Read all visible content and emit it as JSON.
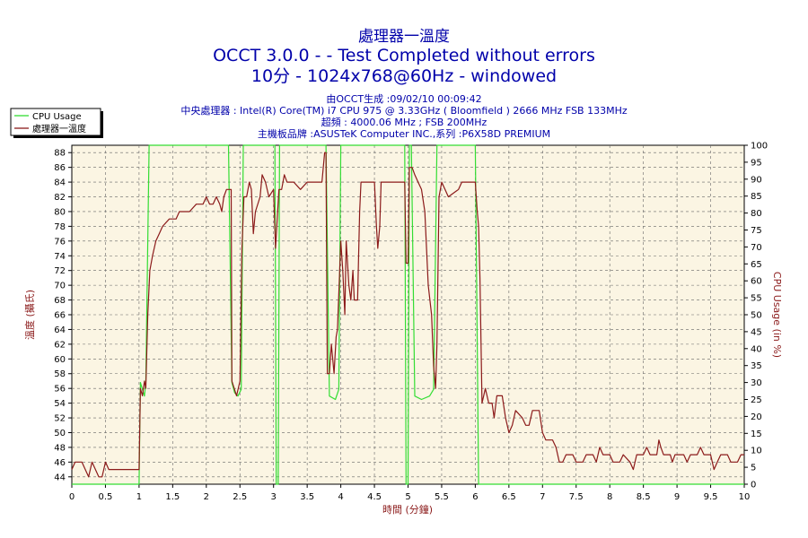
{
  "header": {
    "title": "處理器一溫度",
    "line1": "OCCT 3.0.0 -  - Test Completed without errors",
    "line2": "10分 - 1024x768@60Hz - windowed",
    "info": [
      "由OCCT生成 :09/02/10 00:09:42",
      "中央處理器 : Intel(R) Core(TM) i7 CPU 975 @ 3.33GHz ( Bloomfield ) 2666 MHz FSB 133MHz",
      "超頻 : 4000.06 MHz ; FSB 200MHz",
      "主機板品牌 :ASUSTeK Computer INC.,系列 :P6X58D PREMIUM"
    ]
  },
  "colors": {
    "plot_bg": "#fbf5e3",
    "cpu_usage": "#33dd33",
    "temperature": "#8b1a1a",
    "text_blue": "#0000aa",
    "axis_label": "#8b1a1a",
    "grid": "#666666"
  },
  "chart_data": {
    "type": "line",
    "xlabel": "時間 (分鐘)",
    "ylabel_left": "溫度 (攝氏)",
    "ylabel_right": "CPU Usage (in %)",
    "xlim": [
      0,
      10
    ],
    "ylim_left": [
      43,
      89
    ],
    "ylim_right": [
      0,
      100
    ],
    "x_ticks": [
      "0",
      "0.5",
      "1",
      "1.5",
      "2",
      "2.5",
      "3",
      "3.5",
      "4",
      "4.5",
      "5",
      "5.5",
      "6",
      "6.5",
      "7",
      "7.5",
      "8",
      "8.5",
      "9",
      "9.5",
      "10"
    ],
    "y_ticks_left": [
      "44",
      "46",
      "48",
      "50",
      "52",
      "54",
      "56",
      "58",
      "60",
      "62",
      "64",
      "66",
      "68",
      "70",
      "72",
      "74",
      "76",
      "78",
      "80",
      "82",
      "84",
      "86",
      "88"
    ],
    "y_ticks_right": [
      "0",
      "5",
      "10",
      "15",
      "20",
      "25",
      "30",
      "35",
      "40",
      "45",
      "50",
      "55",
      "60",
      "65",
      "70",
      "75",
      "80",
      "85",
      "90",
      "95",
      "100"
    ],
    "grid": true,
    "legend": {
      "position": "top-left",
      "entries": [
        "CPU Usage",
        "處理器一溫度"
      ]
    },
    "series": [
      {
        "name": "CPU Usage",
        "axis": "right",
        "points": [
          [
            0,
            0
          ],
          [
            1.0,
            0
          ],
          [
            1.02,
            30
          ],
          [
            1.05,
            28
          ],
          [
            1.08,
            26
          ],
          [
            1.1,
            30
          ],
          [
            1.15,
            100
          ],
          [
            1.17,
            100
          ],
          [
            2.33,
            100
          ],
          [
            2.38,
            30
          ],
          [
            2.42,
            27
          ],
          [
            2.47,
            26
          ],
          [
            2.52,
            28
          ],
          [
            2.55,
            100
          ],
          [
            3.02,
            100
          ],
          [
            3.04,
            0
          ],
          [
            3.07,
            0
          ],
          [
            3.09,
            100
          ],
          [
            3.78,
            100
          ],
          [
            3.83,
            26
          ],
          [
            3.92,
            25
          ],
          [
            3.97,
            28
          ],
          [
            4.0,
            100
          ],
          [
            4.95,
            100
          ],
          [
            4.97,
            0
          ],
          [
            5.0,
            0
          ],
          [
            5.02,
            100
          ],
          [
            5.05,
            100
          ],
          [
            5.1,
            26
          ],
          [
            5.2,
            25
          ],
          [
            5.32,
            26
          ],
          [
            5.38,
            28
          ],
          [
            5.43,
            100
          ],
          [
            6.0,
            100
          ],
          [
            6.05,
            0
          ],
          [
            10,
            0
          ]
        ]
      },
      {
        "name": "處理器一溫度",
        "axis": "left",
        "points": [
          [
            0,
            45
          ],
          [
            0.05,
            46
          ],
          [
            0.15,
            46
          ],
          [
            0.2,
            45
          ],
          [
            0.25,
            44
          ],
          [
            0.3,
            46
          ],
          [
            0.4,
            44
          ],
          [
            0.45,
            44
          ],
          [
            0.5,
            46
          ],
          [
            0.55,
            45
          ],
          [
            0.95,
            45
          ],
          [
            1.0,
            45
          ],
          [
            1.02,
            56
          ],
          [
            1.05,
            55
          ],
          [
            1.08,
            57
          ],
          [
            1.1,
            56
          ],
          [
            1.13,
            66
          ],
          [
            1.16,
            72
          ],
          [
            1.2,
            74
          ],
          [
            1.25,
            76
          ],
          [
            1.3,
            77
          ],
          [
            1.35,
            78
          ],
          [
            1.45,
            79
          ],
          [
            1.55,
            79
          ],
          [
            1.6,
            80
          ],
          [
            1.75,
            80
          ],
          [
            1.85,
            81
          ],
          [
            1.95,
            81
          ],
          [
            2.0,
            82
          ],
          [
            2.05,
            81
          ],
          [
            2.1,
            81
          ],
          [
            2.15,
            82
          ],
          [
            2.2,
            81
          ],
          [
            2.23,
            80
          ],
          [
            2.26,
            82
          ],
          [
            2.3,
            83
          ],
          [
            2.37,
            83
          ],
          [
            2.38,
            57
          ],
          [
            2.45,
            55
          ],
          [
            2.5,
            57
          ],
          [
            2.53,
            75
          ],
          [
            2.56,
            82
          ],
          [
            2.6,
            82
          ],
          [
            2.64,
            84
          ],
          [
            2.67,
            83
          ],
          [
            2.7,
            77
          ],
          [
            2.73,
            80
          ],
          [
            2.8,
            82
          ],
          [
            2.83,
            85
          ],
          [
            2.88,
            84
          ],
          [
            2.93,
            82
          ],
          [
            3.0,
            83
          ],
          [
            3.03,
            75
          ],
          [
            3.08,
            83
          ],
          [
            3.12,
            83
          ],
          [
            3.16,
            85
          ],
          [
            3.2,
            84
          ],
          [
            3.3,
            84
          ],
          [
            3.4,
            83
          ],
          [
            3.5,
            84
          ],
          [
            3.72,
            84
          ],
          [
            3.76,
            88
          ],
          [
            3.78,
            88
          ],
          [
            3.8,
            58
          ],
          [
            3.83,
            58
          ],
          [
            3.86,
            62
          ],
          [
            3.9,
            58
          ],
          [
            3.93,
            63
          ],
          [
            3.95,
            64
          ],
          [
            4.0,
            76
          ],
          [
            4.03,
            72
          ],
          [
            4.06,
            66
          ],
          [
            4.08,
            76
          ],
          [
            4.12,
            70
          ],
          [
            4.15,
            68
          ],
          [
            4.18,
            72
          ],
          [
            4.2,
            68
          ],
          [
            4.25,
            68
          ],
          [
            4.28,
            80
          ],
          [
            4.3,
            84
          ],
          [
            4.5,
            84
          ],
          [
            4.53,
            78
          ],
          [
            4.55,
            75
          ],
          [
            4.58,
            78
          ],
          [
            4.6,
            84
          ],
          [
            4.95,
            84
          ],
          [
            4.97,
            73
          ],
          [
            5.0,
            73
          ],
          [
            5.02,
            86
          ],
          [
            5.06,
            86
          ],
          [
            5.1,
            85
          ],
          [
            5.15,
            84
          ],
          [
            5.2,
            83
          ],
          [
            5.25,
            80
          ],
          [
            5.3,
            70
          ],
          [
            5.35,
            66
          ],
          [
            5.38,
            59
          ],
          [
            5.41,
            56
          ],
          [
            5.43,
            62
          ],
          [
            5.46,
            82
          ],
          [
            5.5,
            84
          ],
          [
            5.55,
            83
          ],
          [
            5.6,
            82
          ],
          [
            5.75,
            83
          ],
          [
            5.8,
            84
          ],
          [
            6.0,
            84
          ],
          [
            6.03,
            80
          ],
          [
            6.05,
            78
          ],
          [
            6.07,
            71
          ],
          [
            6.1,
            54
          ],
          [
            6.15,
            56
          ],
          [
            6.2,
            54
          ],
          [
            6.25,
            54
          ],
          [
            6.28,
            52
          ],
          [
            6.32,
            55
          ],
          [
            6.4,
            55
          ],
          [
            6.45,
            52
          ],
          [
            6.5,
            50
          ],
          [
            6.55,
            51
          ],
          [
            6.6,
            53
          ],
          [
            6.7,
            52
          ],
          [
            6.75,
            51
          ],
          [
            6.8,
            51
          ],
          [
            6.85,
            53
          ],
          [
            6.95,
            53
          ],
          [
            7.0,
            50
          ],
          [
            7.05,
            49
          ],
          [
            7.15,
            49
          ],
          [
            7.2,
            48
          ],
          [
            7.25,
            46
          ],
          [
            7.3,
            46
          ],
          [
            7.35,
            47
          ],
          [
            7.45,
            47
          ],
          [
            7.5,
            46
          ],
          [
            7.6,
            46
          ],
          [
            7.65,
            47
          ],
          [
            7.75,
            47
          ],
          [
            7.8,
            46
          ],
          [
            7.85,
            48
          ],
          [
            7.9,
            47
          ],
          [
            8.0,
            47
          ],
          [
            8.05,
            46
          ],
          [
            8.15,
            46
          ],
          [
            8.2,
            47
          ],
          [
            8.3,
            46
          ],
          [
            8.35,
            45
          ],
          [
            8.4,
            47
          ],
          [
            8.5,
            47
          ],
          [
            8.55,
            48
          ],
          [
            8.6,
            47
          ],
          [
            8.7,
            47
          ],
          [
            8.73,
            49
          ],
          [
            8.76,
            48
          ],
          [
            8.8,
            47
          ],
          [
            8.9,
            47
          ],
          [
            8.93,
            46
          ],
          [
            8.97,
            47
          ],
          [
            9.1,
            47
          ],
          [
            9.15,
            46
          ],
          [
            9.2,
            47
          ],
          [
            9.3,
            47
          ],
          [
            9.35,
            48
          ],
          [
            9.4,
            47
          ],
          [
            9.5,
            47
          ],
          [
            9.55,
            45
          ],
          [
            9.6,
            46
          ],
          [
            9.65,
            47
          ],
          [
            9.75,
            47
          ],
          [
            9.8,
            46
          ],
          [
            9.9,
            46
          ],
          [
            9.95,
            47
          ],
          [
            10,
            47
          ]
        ]
      }
    ]
  }
}
